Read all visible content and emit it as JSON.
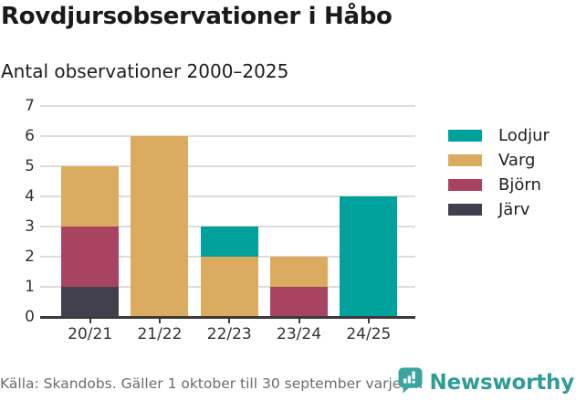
{
  "header": {
    "title": "Rovdjursobservationer i Håbo",
    "subtitle": "Antal observationer 2000–2025"
  },
  "chart_data": {
    "type": "bar",
    "variant": "stacked-vertical",
    "title": "Rovdjursobservationer i Håbo",
    "subtitle": "Antal observationer 2000–2025",
    "xlabel": "",
    "ylabel": "",
    "categories": [
      "20/21",
      "21/22",
      "22/23",
      "23/24",
      "24/25"
    ],
    "series": [
      {
        "name": "Lodjur",
        "color": "#00a29b",
        "values": [
          0,
          0,
          1,
          0,
          4
        ]
      },
      {
        "name": "Varg",
        "color": "#dbac5f",
        "values": [
          2,
          6,
          2,
          1,
          0
        ]
      },
      {
        "name": "Björn",
        "color": "#a84361",
        "values": [
          2,
          0,
          0,
          1,
          0
        ]
      },
      {
        "name": "Järv",
        "color": "#43404e",
        "values": [
          1,
          0,
          0,
          0,
          0
        ]
      }
    ],
    "stack_order_note": "series listed top-of-stack first; last series sits at the bottom of each stack",
    "ylim": [
      0,
      7
    ],
    "yticks": [
      0,
      1,
      2,
      3,
      4,
      5,
      6,
      7
    ],
    "grid": true,
    "legend_position": "right",
    "axis_colors": {
      "grid": "#dcdcdc",
      "baseline": "#3a3a3a",
      "tick_text": "#333333"
    }
  },
  "footer": {
    "source": "Källa: Skandobs. Gäller 1 oktober till 30 september varje år.",
    "brand": "Newsworthy",
    "brand_color": "#2f9d97"
  }
}
